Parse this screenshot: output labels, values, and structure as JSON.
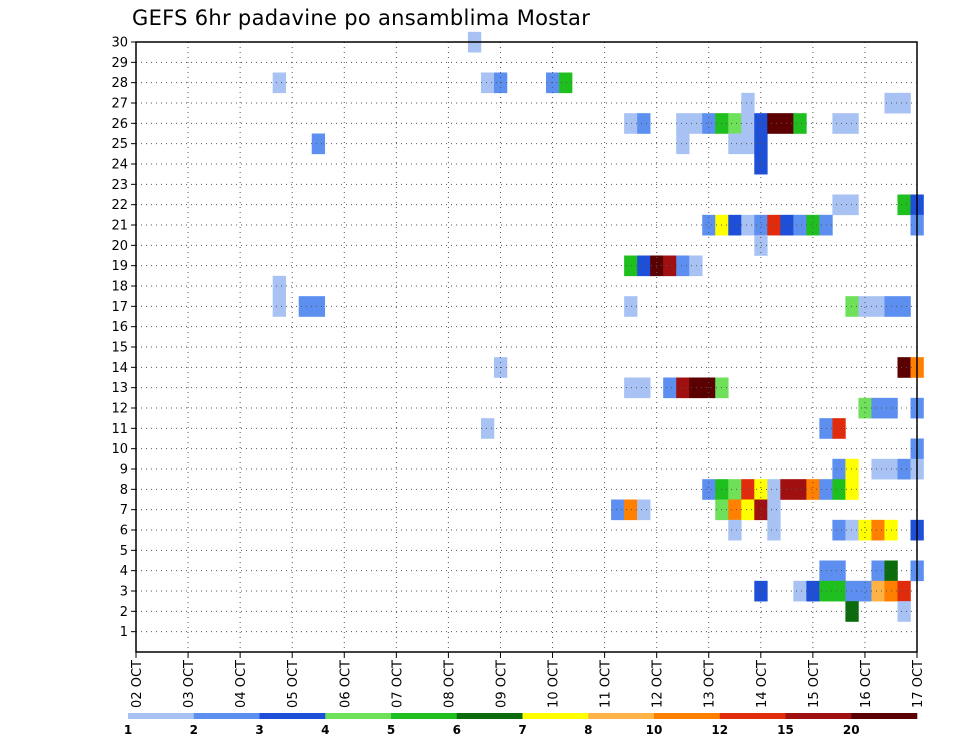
{
  "chart_data": {
    "type": "heatmap",
    "title": "GEFS 6hr padavine po ansamblima Mostar",
    "x_tick_labels": [
      "02 OCT",
      "03 OCT",
      "04 OCT",
      "05 OCT",
      "06 OCT",
      "07 OCT",
      "08 OCT",
      "09 OCT",
      "10 OCT",
      "11 OCT",
      "12 OCT",
      "13 OCT",
      "14 OCT",
      "15 OCT",
      "16 OCT",
      "17 OCT"
    ],
    "x_range_days": [
      0,
      15
    ],
    "y_tick_labels": [
      1,
      2,
      3,
      4,
      5,
      6,
      7,
      8,
      9,
      10,
      11,
      12,
      13,
      14,
      15,
      16,
      17,
      18,
      19,
      20,
      21,
      22,
      23,
      24,
      25,
      26,
      27,
      28,
      29,
      30
    ],
    "y_range": [
      0,
      30
    ],
    "grid": true,
    "legend_position": "bottom",
    "legend_labels": [
      "1",
      "2",
      "3",
      "4",
      "5",
      "6",
      "7",
      "8",
      "10",
      "12",
      "15",
      "20"
    ],
    "legend_colors": [
      "#a9c2f4",
      "#5c8ff0",
      "#1d4fd8",
      "#6fe05a",
      "#1fbf1f",
      "#0c6b0c",
      "#ffff00",
      "#ffb347",
      "#ff8000",
      "#e02c0c",
      "#a01010",
      "#5a0000"
    ],
    "colors": {
      "c1": "#a9c2f4",
      "c2": "#5c8ff0",
      "c3": "#1d4fd8",
      "c4": "#6fe05a",
      "c5": "#1fbf1f",
      "c6": "#0c6b0c",
      "c7": "#ffff00",
      "c8": "#ffb347",
      "c10": "#ff8000",
      "c12": "#e02c0c",
      "c15": "#a01010",
      "c20": "#5a0000"
    },
    "cells_note": "x = days after 02 OCT 00Z, y = ensemble member, c = precipitation class (mm/6h)",
    "cells": [
      {
        "x": 6.5,
        "y": 30,
        "c": "c1"
      },
      {
        "x": 2.75,
        "y": 28,
        "c": "c1"
      },
      {
        "x": 6.75,
        "y": 28,
        "c": "c1"
      },
      {
        "x": 7.0,
        "y": 28,
        "c": "c2"
      },
      {
        "x": 8.0,
        "y": 28,
        "c": "c2"
      },
      {
        "x": 8.25,
        "y": 28,
        "c": "c5"
      },
      {
        "x": 11.75,
        "y": 27,
        "c": "c1"
      },
      {
        "x": 14.5,
        "y": 27,
        "c": "c1"
      },
      {
        "x": 14.75,
        "y": 27,
        "c": "c1"
      },
      {
        "x": 9.5,
        "y": 26,
        "c": "c1"
      },
      {
        "x": 9.75,
        "y": 26,
        "c": "c2"
      },
      {
        "x": 10.5,
        "y": 26,
        "c": "c1"
      },
      {
        "x": 10.75,
        "y": 26,
        "c": "c1"
      },
      {
        "x": 11.0,
        "y": 26,
        "c": "c2"
      },
      {
        "x": 11.25,
        "y": 26,
        "c": "c5"
      },
      {
        "x": 11.5,
        "y": 26,
        "c": "c4"
      },
      {
        "x": 11.75,
        "y": 26,
        "c": "c1"
      },
      {
        "x": 12.0,
        "y": 26,
        "c": "c3"
      },
      {
        "x": 12.25,
        "y": 26,
        "c": "c20"
      },
      {
        "x": 12.5,
        "y": 26,
        "c": "c20"
      },
      {
        "x": 12.75,
        "y": 26,
        "c": "c5"
      },
      {
        "x": 13.5,
        "y": 26,
        "c": "c1"
      },
      {
        "x": 13.75,
        "y": 26,
        "c": "c1"
      },
      {
        "x": 3.5,
        "y": 25,
        "c": "c2"
      },
      {
        "x": 10.5,
        "y": 25,
        "c": "c1"
      },
      {
        "x": 11.5,
        "y": 25,
        "c": "c1"
      },
      {
        "x": 11.75,
        "y": 25,
        "c": "c1"
      },
      {
        "x": 12.0,
        "y": 25,
        "c": "c3"
      },
      {
        "x": 12.0,
        "y": 24,
        "c": "c3"
      },
      {
        "x": 13.5,
        "y": 22,
        "c": "c1"
      },
      {
        "x": 13.75,
        "y": 22,
        "c": "c1"
      },
      {
        "x": 14.75,
        "y": 22,
        "c": "c5"
      },
      {
        "x": 15.0,
        "y": 22,
        "c": "c3"
      },
      {
        "x": 11.0,
        "y": 21,
        "c": "c2"
      },
      {
        "x": 11.25,
        "y": 21,
        "c": "c7"
      },
      {
        "x": 11.5,
        "y": 21,
        "c": "c3"
      },
      {
        "x": 11.75,
        "y": 21,
        "c": "c1"
      },
      {
        "x": 12.0,
        "y": 21,
        "c": "c2"
      },
      {
        "x": 12.25,
        "y": 21,
        "c": "c12"
      },
      {
        "x": 12.5,
        "y": 21,
        "c": "c3"
      },
      {
        "x": 12.75,
        "y": 21,
        "c": "c2"
      },
      {
        "x": 13.0,
        "y": 21,
        "c": "c5"
      },
      {
        "x": 13.25,
        "y": 21,
        "c": "c2"
      },
      {
        "x": 15.0,
        "y": 21,
        "c": "c2"
      },
      {
        "x": 12.0,
        "y": 20,
        "c": "c1"
      },
      {
        "x": 9.5,
        "y": 19,
        "c": "c5"
      },
      {
        "x": 9.75,
        "y": 19,
        "c": "c3"
      },
      {
        "x": 10.0,
        "y": 19,
        "c": "c20"
      },
      {
        "x": 10.25,
        "y": 19,
        "c": "c15"
      },
      {
        "x": 10.5,
        "y": 19,
        "c": "c2"
      },
      {
        "x": 10.75,
        "y": 19,
        "c": "c1"
      },
      {
        "x": 2.75,
        "y": 18,
        "c": "c1"
      },
      {
        "x": 2.75,
        "y": 17,
        "c": "c1"
      },
      {
        "x": 3.25,
        "y": 17,
        "c": "c2"
      },
      {
        "x": 3.5,
        "y": 17,
        "c": "c2"
      },
      {
        "x": 9.5,
        "y": 17,
        "c": "c1"
      },
      {
        "x": 13.75,
        "y": 17,
        "c": "c4"
      },
      {
        "x": 14.0,
        "y": 17,
        "c": "c1"
      },
      {
        "x": 14.25,
        "y": 17,
        "c": "c1"
      },
      {
        "x": 14.5,
        "y": 17,
        "c": "c2"
      },
      {
        "x": 14.75,
        "y": 17,
        "c": "c2"
      },
      {
        "x": 14.75,
        "y": 14,
        "c": "c20"
      },
      {
        "x": 15.0,
        "y": 14,
        "c": "c10"
      },
      {
        "x": 7.0,
        "y": 14,
        "c": "c1"
      },
      {
        "x": 9.5,
        "y": 13,
        "c": "c1"
      },
      {
        "x": 9.75,
        "y": 13,
        "c": "c1"
      },
      {
        "x": 10.25,
        "y": 13,
        "c": "c2"
      },
      {
        "x": 10.5,
        "y": 13,
        "c": "c15"
      },
      {
        "x": 10.75,
        "y": 13,
        "c": "c20"
      },
      {
        "x": 11.0,
        "y": 13,
        "c": "c20"
      },
      {
        "x": 11.25,
        "y": 13,
        "c": "c4"
      },
      {
        "x": 14.0,
        "y": 12,
        "c": "c4"
      },
      {
        "x": 14.25,
        "y": 12,
        "c": "c2"
      },
      {
        "x": 14.5,
        "y": 12,
        "c": "c2"
      },
      {
        "x": 15.0,
        "y": 12,
        "c": "c2"
      },
      {
        "x": 6.75,
        "y": 11,
        "c": "c1"
      },
      {
        "x": 13.25,
        "y": 11,
        "c": "c2"
      },
      {
        "x": 13.5,
        "y": 11,
        "c": "c12"
      },
      {
        "x": 15.0,
        "y": 10,
        "c": "c2"
      },
      {
        "x": 13.5,
        "y": 9,
        "c": "c2"
      },
      {
        "x": 13.75,
        "y": 9,
        "c": "c7"
      },
      {
        "x": 14.25,
        "y": 9,
        "c": "c1"
      },
      {
        "x": 14.5,
        "y": 9,
        "c": "c1"
      },
      {
        "x": 14.75,
        "y": 9,
        "c": "c2"
      },
      {
        "x": 15.0,
        "y": 9,
        "c": "c1"
      },
      {
        "x": 11.0,
        "y": 8,
        "c": "c2"
      },
      {
        "x": 11.25,
        "y": 8,
        "c": "c5"
      },
      {
        "x": 11.5,
        "y": 8,
        "c": "c4"
      },
      {
        "x": 11.75,
        "y": 8,
        "c": "c12"
      },
      {
        "x": 12.0,
        "y": 8,
        "c": "c7"
      },
      {
        "x": 12.25,
        "y": 8,
        "c": "c1"
      },
      {
        "x": 12.5,
        "y": 8,
        "c": "c15"
      },
      {
        "x": 12.75,
        "y": 8,
        "c": "c15"
      },
      {
        "x": 13.0,
        "y": 8,
        "c": "c10"
      },
      {
        "x": 13.25,
        "y": 8,
        "c": "c2"
      },
      {
        "x": 13.5,
        "y": 8,
        "c": "c5"
      },
      {
        "x": 13.75,
        "y": 8,
        "c": "c7"
      },
      {
        "x": 9.25,
        "y": 7,
        "c": "c2"
      },
      {
        "x": 9.5,
        "y": 7,
        "c": "c10"
      },
      {
        "x": 9.75,
        "y": 7,
        "c": "c1"
      },
      {
        "x": 11.25,
        "y": 7,
        "c": "c4"
      },
      {
        "x": 11.5,
        "y": 7,
        "c": "c10"
      },
      {
        "x": 11.75,
        "y": 7,
        "c": "c7"
      },
      {
        "x": 12.0,
        "y": 7,
        "c": "c15"
      },
      {
        "x": 12.25,
        "y": 7,
        "c": "c1"
      },
      {
        "x": 11.5,
        "y": 6,
        "c": "c1"
      },
      {
        "x": 12.25,
        "y": 6,
        "c": "c1"
      },
      {
        "x": 13.5,
        "y": 6,
        "c": "c2"
      },
      {
        "x": 13.75,
        "y": 6,
        "c": "c1"
      },
      {
        "x": 14.0,
        "y": 6,
        "c": "c7"
      },
      {
        "x": 14.25,
        "y": 6,
        "c": "c10"
      },
      {
        "x": 14.5,
        "y": 6,
        "c": "c7"
      },
      {
        "x": 15.0,
        "y": 6,
        "c": "c3"
      },
      {
        "x": 13.25,
        "y": 4,
        "c": "c2"
      },
      {
        "x": 13.5,
        "y": 4,
        "c": "c2"
      },
      {
        "x": 14.25,
        "y": 4,
        "c": "c2"
      },
      {
        "x": 14.5,
        "y": 4,
        "c": "c6"
      },
      {
        "x": 15.0,
        "y": 4,
        "c": "c2"
      },
      {
        "x": 12.0,
        "y": 3,
        "c": "c3"
      },
      {
        "x": 12.75,
        "y": 3,
        "c": "c1"
      },
      {
        "x": 13.0,
        "y": 3,
        "c": "c3"
      },
      {
        "x": 13.25,
        "y": 3,
        "c": "c5"
      },
      {
        "x": 13.5,
        "y": 3,
        "c": "c5"
      },
      {
        "x": 13.75,
        "y": 3,
        "c": "c2"
      },
      {
        "x": 14.0,
        "y": 3,
        "c": "c2"
      },
      {
        "x": 14.25,
        "y": 3,
        "c": "c8"
      },
      {
        "x": 14.5,
        "y": 3,
        "c": "c10"
      },
      {
        "x": 14.75,
        "y": 3,
        "c": "c12"
      },
      {
        "x": 13.75,
        "y": 2,
        "c": "c6"
      },
      {
        "x": 14.75,
        "y": 2,
        "c": "c1"
      }
    ]
  }
}
